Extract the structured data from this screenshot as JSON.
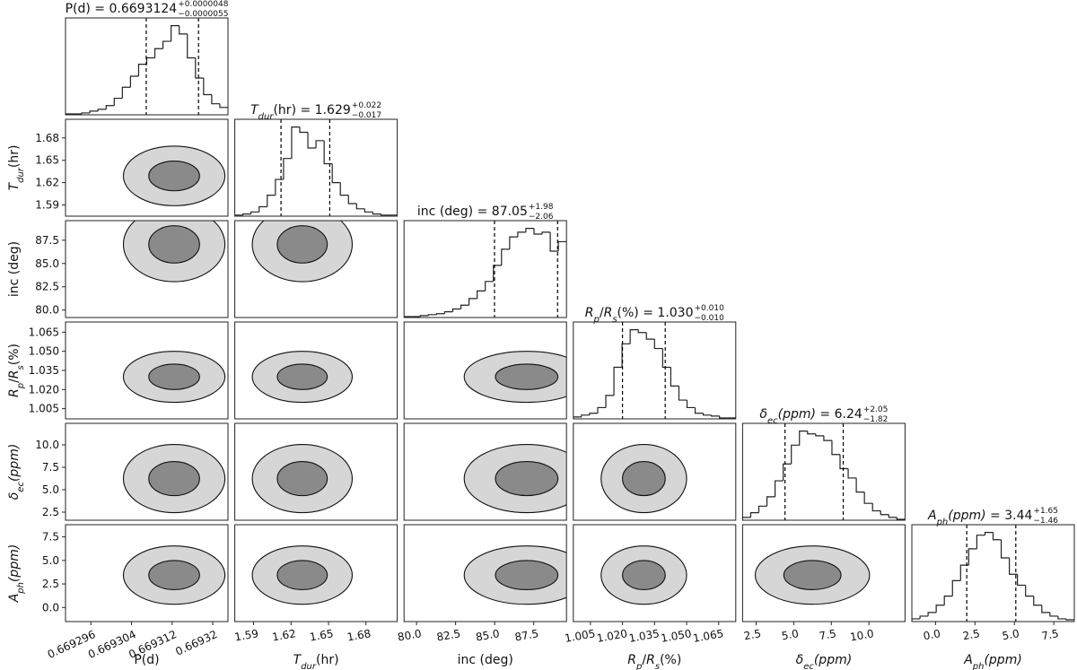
{
  "chart_data": {
    "type": "corner",
    "title_separator": " = ",
    "params": [
      {
        "label": [
          [
            "P(d)",
            ""
          ]
        ],
        "title": {
          "value": "0.6693124",
          "plus": "+0.0000048",
          "minus": "−0.0000055"
        },
        "lim": [
          0.669291,
          0.669323
        ],
        "ticks": [
          0.669296,
          0.669304,
          0.669312,
          0.66932
        ],
        "quantiles": [
          0.6693069,
          0.6693172
        ],
        "bins": [
          0.669291,
          0.6692926,
          0.6692942,
          0.6692958,
          0.6692974,
          0.669299,
          0.6693006,
          0.6693022,
          0.6693038,
          0.6693054,
          0.669307,
          0.6693086,
          0.6693102,
          0.6693118,
          0.6693134,
          0.669315,
          0.6693166,
          0.6693182,
          0.6693198,
          0.6693214,
          0.669323
        ],
        "counts": [
          1,
          1,
          2,
          4,
          6,
          10,
          18,
          30,
          42,
          55,
          62,
          72,
          80,
          97,
          88,
          62,
          40,
          22,
          12,
          8
        ]
      },
      {
        "label": [
          [
            "T",
            "i"
          ],
          [
            "dur",
            "sub"
          ],
          [
            "(hr)",
            ""
          ]
        ],
        "title": {
          "value": "1.629",
          "plus": "+0.022",
          "minus": "−0.017"
        },
        "lim": [
          1.575,
          1.705
        ],
        "ticks": [
          1.59,
          1.62,
          1.65,
          1.68
        ],
        "quantiles": [
          1.612,
          1.651
        ],
        "bins": [
          1.575,
          1.5815,
          1.588,
          1.5945,
          1.601,
          1.6075,
          1.614,
          1.6205,
          1.627,
          1.6335,
          1.64,
          1.6465,
          1.653,
          1.6595,
          1.666,
          1.6725,
          1.679,
          1.6855,
          1.692,
          1.6985,
          1.705
        ],
        "counts": [
          1,
          2,
          4,
          9,
          20,
          35,
          55,
          85,
          80,
          65,
          72,
          50,
          32,
          20,
          12,
          7,
          4,
          2,
          1,
          1
        ]
      },
      {
        "label": [
          [
            "inc (deg)",
            ""
          ]
        ],
        "title": {
          "value": "87.05",
          "plus": "+1.98",
          "minus": "−2.06"
        },
        "lim": [
          79.2,
          89.6
        ],
        "ticks": [
          {
            "value": 80,
            "label": "80.0"
          },
          82.5,
          {
            "value": 85,
            "label": "85.0"
          },
          87.5
        ],
        "quantiles": [
          84.99,
          89.03
        ],
        "bins": [
          79.2,
          79.72,
          80.24,
          80.76,
          81.28,
          81.8,
          82.32,
          82.84,
          83.36,
          83.88,
          84.4,
          84.92,
          85.44,
          85.96,
          86.48,
          87,
          87.52,
          88.04,
          88.56,
          89.08,
          89.6
        ],
        "counts": [
          1,
          1,
          2,
          3,
          4,
          6,
          9,
          13,
          20,
          28,
          38,
          55,
          72,
          85,
          90,
          94,
          88,
          90,
          70,
          80
        ]
      },
      {
        "label": [
          [
            "R",
            "i"
          ],
          [
            "p",
            "sub"
          ],
          [
            "/",
            ""
          ],
          [
            "R",
            "i"
          ],
          [
            "s",
            "sub"
          ],
          [
            "(%)",
            ""
          ]
        ],
        "title": {
          "value": "1.030",
          "plus": "+0.010",
          "minus": "−0.010"
        },
        "lim": [
          0.997,
          1.073
        ],
        "ticks": [
          1.005,
          {
            "value": 1.02,
            "label": "1.020"
          },
          1.035,
          {
            "value": 1.05,
            "label": "1.050"
          },
          1.065
        ],
        "quantiles": [
          1.02,
          1.04
        ],
        "bins": [
          0.997,
          1.0008,
          1.0046,
          1.0084,
          1.0122,
          1.016,
          1.0198,
          1.0236,
          1.0274,
          1.0312,
          1.035,
          1.0388,
          1.0426,
          1.0464,
          1.0502,
          1.054,
          1.0578,
          1.0616,
          1.0654,
          1.0692,
          1.073
        ],
        "counts": [
          2,
          4,
          6,
          12,
          25,
          55,
          80,
          95,
          92,
          85,
          75,
          55,
          35,
          20,
          12,
          6,
          4,
          3,
          1,
          1
        ]
      },
      {
        "label": [
          [
            "δ",
            "i"
          ],
          [
            "ec",
            "sub"
          ],
          [
            "(ppm)",
            "i"
          ]
        ],
        "title": {
          "value": "6.24",
          "plus": "+2.05",
          "minus": "−1.82"
        },
        "lim": [
          1.6,
          12.4
        ],
        "ticks": [
          2.5,
          {
            "value": 5,
            "label": "5.0"
          },
          7.5,
          {
            "value": 10,
            "label": "10.0"
          }
        ],
        "quantiles": [
          4.42,
          8.29
        ],
        "bins": [
          1.6,
          2.14,
          2.68,
          3.22,
          3.76,
          4.3,
          4.84,
          5.38,
          5.92,
          6.46,
          7,
          7.54,
          8.08,
          8.62,
          9.16,
          9.7,
          10.24,
          10.78,
          11.32,
          11.86,
          12.4
        ],
        "counts": [
          3,
          8,
          15,
          25,
          42,
          60,
          80,
          95,
          92,
          90,
          85,
          70,
          55,
          45,
          30,
          18,
          10,
          6,
          3,
          1
        ]
      },
      {
        "label": [
          [
            "A",
            "i"
          ],
          [
            "ph",
            "sub"
          ],
          [
            "(ppm)",
            "i"
          ]
        ],
        "title": {
          "value": "3.44",
          "plus": "+1.65",
          "minus": "−1.46"
        },
        "lim": [
          -1.5,
          8.8
        ],
        "ticks": [
          {
            "value": 0,
            "label": "0.0"
          },
          2.5,
          {
            "value": 5,
            "label": "5.0"
          },
          7.5
        ],
        "quantiles": [
          1.98,
          5.09
        ],
        "bins": [
          -1.5,
          -0.985,
          -0.47,
          0.045,
          0.56,
          1.075,
          1.59,
          2.105,
          2.62,
          3.135,
          3.65,
          4.165,
          4.68,
          5.195,
          5.71,
          6.225,
          6.74,
          7.255,
          7.77,
          8.285,
          8.8
        ],
        "counts": [
          3,
          6,
          10,
          18,
          28,
          45,
          62,
          80,
          95,
          98,
          90,
          70,
          52,
          40,
          28,
          18,
          10,
          6,
          3,
          2
        ]
      }
    ],
    "panels": [
      {
        "contours": [
          [
            0.6693124,
            1.629,
            1e-05,
            0.04
          ],
          [
            0.6693124,
            1.629,
            5e-06,
            0.02
          ]
        ]
      },
      {
        "contours": [
          [
            0.6693124,
            87.05,
            1e-05,
            4
          ],
          [
            0.6693124,
            87.05,
            5e-06,
            2
          ]
        ]
      },
      {
        "contours": [
          [
            1.629,
            87.05,
            0.04,
            4
          ],
          [
            1.629,
            87.05,
            0.02,
            2
          ]
        ]
      },
      {
        "contours": [
          [
            0.6693124,
            1.03,
            1e-05,
            0.02
          ],
          [
            0.6693124,
            1.03,
            5e-06,
            0.01
          ]
        ]
      },
      {
        "contours": [
          [
            1.629,
            1.03,
            0.04,
            0.02
          ],
          [
            1.629,
            1.03,
            0.02,
            0.01
          ]
        ]
      },
      {
        "contours": [
          [
            87.05,
            1.03,
            4,
            0.02
          ],
          [
            87.05,
            1.03,
            2,
            0.01
          ]
        ]
      },
      {
        "contours": [
          [
            0.6693124,
            6.24,
            1e-05,
            3.8
          ],
          [
            0.6693124,
            6.24,
            5e-06,
            1.9
          ]
        ]
      },
      {
        "contours": [
          [
            1.629,
            6.24,
            0.04,
            3.8
          ],
          [
            1.629,
            6.24,
            0.02,
            1.9
          ]
        ]
      },
      {
        "contours": [
          [
            87.05,
            6.24,
            4,
            3.8
          ],
          [
            87.05,
            6.24,
            2,
            1.9
          ]
        ]
      },
      {
        "contours": [
          [
            1.03,
            6.24,
            0.02,
            3.8
          ],
          [
            1.03,
            6.24,
            0.01,
            1.9
          ]
        ]
      },
      {
        "contours": [
          [
            0.6693124,
            3.44,
            1e-05,
            3.1
          ],
          [
            0.6693124,
            3.44,
            5e-06,
            1.55
          ]
        ]
      },
      {
        "contours": [
          [
            1.629,
            3.44,
            0.04,
            3.1
          ],
          [
            1.629,
            3.44,
            0.02,
            1.55
          ]
        ]
      },
      {
        "contours": [
          [
            87.05,
            3.44,
            4,
            3.1
          ],
          [
            87.05,
            3.44,
            2,
            1.55
          ]
        ]
      },
      {
        "contours": [
          [
            1.03,
            3.44,
            0.02,
            3.1
          ],
          [
            1.03,
            3.44,
            0.01,
            1.55
          ]
        ]
      },
      {
        "contours": [
          [
            6.24,
            3.44,
            3.8,
            3.1
          ],
          [
            6.24,
            3.44,
            1.9,
            1.55
          ]
        ]
      }
    ]
  }
}
